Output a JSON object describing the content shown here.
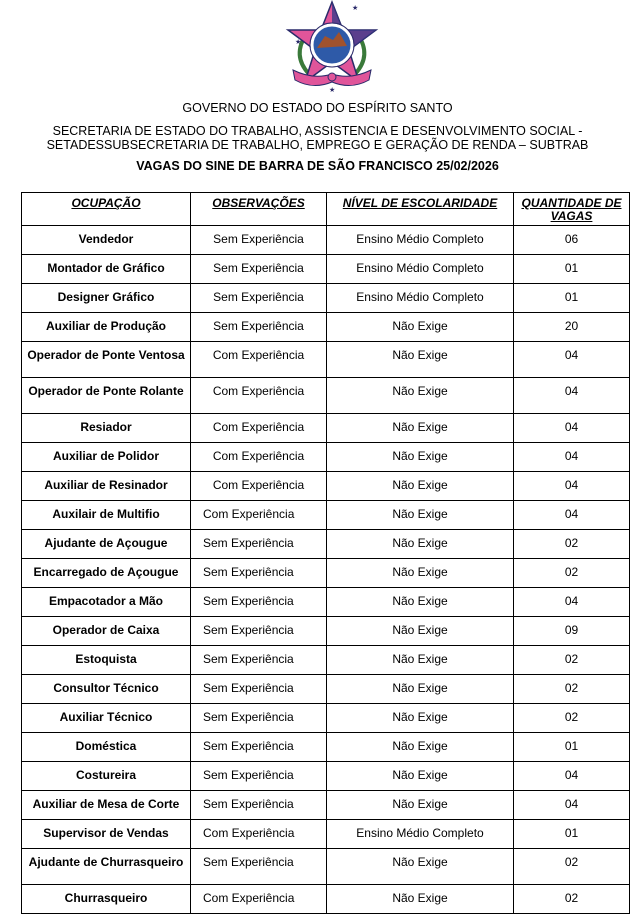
{
  "header": {
    "emblem": "state-coat-of-arms",
    "government": "GOVERNO DO ESTADO DO ESPÍRITO SANTO",
    "secretariat_line1": "SECRETARIA DE ESTADO DO TRABALHO, ASSISTENCIA E DESENVOLVIMENTO SOCIAL -",
    "secretariat_line2": "SETADESSUBSECRETARIA DE TRABALHO, EMPREGO E GERAÇÃO DE RENDA – SUBTRAB",
    "title": "VAGAS DO SINE DE BARRA DE SÃO FRANCISCO 25/02/2026"
  },
  "table": {
    "columns": [
      "OCUPAÇÃO",
      "OBSERVAÇÕES",
      "NÍVEL DE ESCOLARIDADE",
      "QUANTIDADE DE VAGAS"
    ],
    "rows": [
      [
        "Vendedor",
        "Sem Experiência",
        "Ensino Médio Completo",
        "06"
      ],
      [
        "Montador de Gráfico",
        "Sem Experiência",
        "Ensino Médio Completo",
        "01"
      ],
      [
        "Designer Gráfico",
        "Sem Experiência",
        "Ensino Médio Completo",
        "01"
      ],
      [
        "Auxiliar de Produção",
        "Sem Experiência",
        "Não Exige",
        "20"
      ],
      [
        "Operador de Ponte Ventosa",
        "Com Experiência",
        "Não Exige",
        "04"
      ],
      [
        "Operador de Ponte Rolante",
        "Com Experiência",
        "Não Exige",
        "04"
      ],
      [
        "Resiador",
        "Com Experiência",
        "Não Exige",
        "04"
      ],
      [
        "Auxiliar de Polidor",
        "Com Experiência",
        "Não Exige",
        "04"
      ],
      [
        "Auxiliar de Resinador",
        "Com Experiência",
        "Não Exige",
        "04"
      ],
      [
        "Auxilair de Multifio",
        "Com Experiência",
        "Não Exige",
        "04"
      ],
      [
        "Ajudante de Açougue",
        "Sem Experiência",
        "Não Exige",
        "02"
      ],
      [
        "Encarregado de Açougue",
        "Sem Experiência",
        "Não Exige",
        "02"
      ],
      [
        "Empacotador a Mão",
        "Sem Experiência",
        "Não Exige",
        "04"
      ],
      [
        "Operador de Caixa",
        "Sem Experiência",
        "Não Exige",
        "09"
      ],
      [
        "Estoquista",
        "Sem Experiência",
        "Não Exige",
        "02"
      ],
      [
        "Consultor Técnico",
        "Sem Experiência",
        "Não Exige",
        "02"
      ],
      [
        "Auxiliar Técnico",
        "Sem Experiência",
        "Não Exige",
        "02"
      ],
      [
        "Doméstica",
        "Sem Experiência",
        "Não Exige",
        "01"
      ],
      [
        "Costureira",
        "Sem Experiência",
        "Não Exige",
        "04"
      ],
      [
        "Auxiliar de Mesa de Corte",
        "Sem Experiência",
        "Não Exige",
        "04"
      ],
      [
        "Supervisor de Vendas",
        "Com Experiência",
        "Ensino Médio Completo",
        "01"
      ],
      [
        "Ajudante de Churrasqueiro",
        "Sem Experiência",
        "Não Exige",
        "02"
      ],
      [
        "Churrasqueiro",
        "Com Experiência",
        "Não Exige",
        "02"
      ]
    ]
  }
}
